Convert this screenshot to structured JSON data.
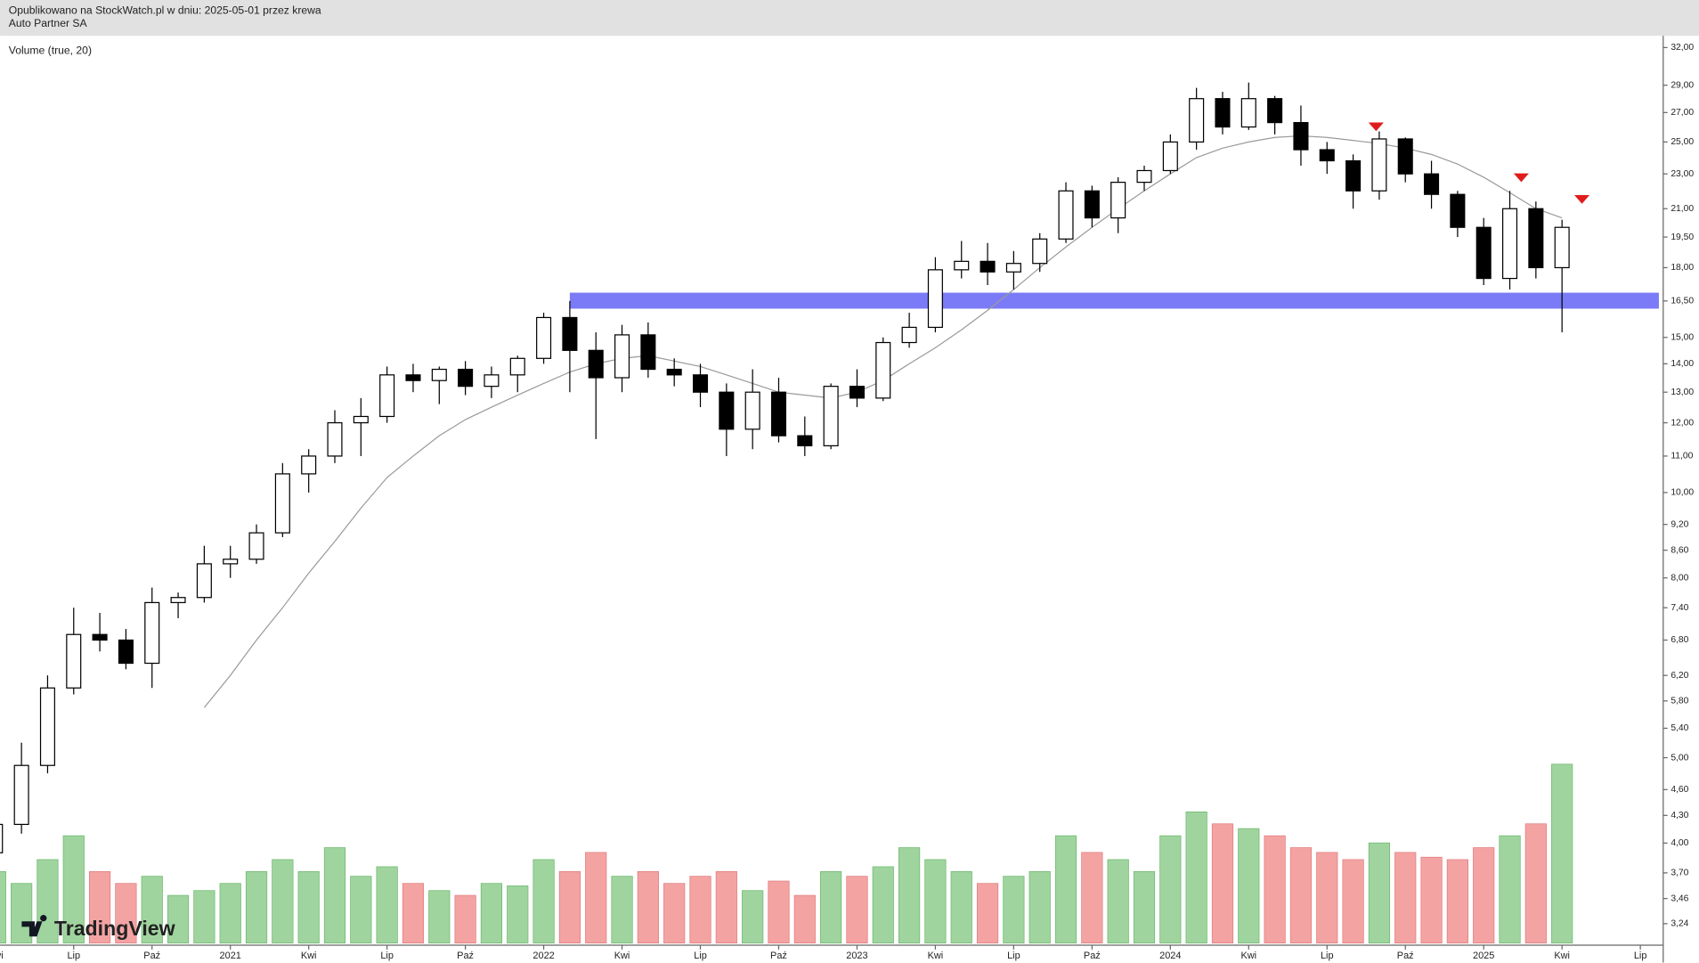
{
  "header": "Opublikowano na StockWatch.pl w dniu: 2025-05-01 przez krewa",
  "logo": "TradingView",
  "chart_data": {
    "type": "candlestick",
    "title": "Auto Partner SA",
    "log_scale": true,
    "up_color": "#ffffff",
    "down_color": "#000000",
    "x": [
      "2020-04",
      "2020-05",
      "2020-06",
      "2020-07",
      "2020-08",
      "2020-09",
      "2020-10",
      "2020-11",
      "2020-12",
      "2021-01",
      "2021-02",
      "2021-03",
      "2021-04",
      "2021-05",
      "2021-06",
      "2021-07",
      "2021-08",
      "2021-09",
      "2021-10",
      "2021-11",
      "2021-12",
      "2022-01",
      "2022-02",
      "2022-03",
      "2022-04",
      "2022-05",
      "2022-06",
      "2022-07",
      "2022-08",
      "2022-09",
      "2022-10",
      "2022-11",
      "2022-12",
      "2023-01",
      "2023-02",
      "2023-03",
      "2023-04",
      "2023-05",
      "2023-06",
      "2023-07",
      "2023-08",
      "2023-09",
      "2023-10",
      "2023-11",
      "2023-12",
      "2024-01",
      "2024-02",
      "2024-03",
      "2024-04",
      "2024-05",
      "2024-06",
      "2024-07",
      "2024-08",
      "2024-09",
      "2024-10",
      "2024-11",
      "2024-12",
      "2025-01",
      "2025-02",
      "2025-03",
      "2025-04"
    ],
    "open": [
      3.9,
      4.2,
      4.9,
      6.0,
      6.9,
      6.8,
      6.4,
      7.5,
      7.6,
      8.3,
      8.4,
      9.0,
      10.5,
      11.0,
      12.0,
      12.2,
      13.6,
      13.4,
      13.8,
      13.2,
      13.6,
      14.2,
      15.8,
      14.5,
      13.5,
      15.1,
      13.8,
      13.6,
      13.0,
      11.8,
      13.0,
      11.6,
      11.3,
      13.2,
      12.8,
      14.8,
      15.4,
      17.9,
      18.3,
      17.8,
      18.2,
      19.4,
      22.0,
      20.5,
      22.5,
      23.2,
      25.0,
      28.0,
      26.0,
      28.0,
      26.3,
      24.5,
      23.8,
      22.0,
      25.2,
      23.0,
      21.8,
      20.0,
      17.5,
      21.0,
      18.0
    ],
    "high": [
      4.3,
      5.2,
      6.2,
      7.4,
      7.3,
      7.0,
      7.8,
      7.7,
      8.7,
      8.7,
      9.2,
      10.8,
      11.2,
      12.4,
      12.8,
      13.9,
      14.0,
      13.9,
      14.1,
      13.9,
      14.3,
      16.0,
      16.5,
      15.2,
      15.5,
      15.6,
      14.2,
      14.0,
      13.3,
      13.8,
      13.5,
      12.2,
      13.3,
      13.8,
      15.0,
      16.0,
      18.5,
      19.3,
      19.2,
      18.8,
      19.7,
      22.5,
      22.3,
      22.8,
      23.5,
      25.5,
      28.8,
      28.5,
      29.2,
      28.2,
      27.5,
      25.0,
      24.2,
      25.7,
      25.3,
      23.8,
      22.0,
      20.5,
      22.0,
      21.4,
      20.4
    ],
    "low": [
      3.8,
      4.1,
      4.8,
      5.9,
      6.6,
      6.3,
      6.0,
      7.2,
      7.5,
      8.0,
      8.3,
      8.9,
      10.0,
      10.8,
      11.0,
      12.0,
      13.0,
      12.6,
      12.9,
      12.8,
      13.0,
      14.0,
      13.0,
      11.5,
      13.0,
      13.5,
      13.2,
      12.5,
      11.0,
      11.2,
      11.4,
      11.0,
      11.2,
      12.5,
      12.7,
      14.6,
      15.2,
      17.5,
      17.2,
      17.0,
      17.8,
      19.2,
      20.0,
      19.7,
      22.0,
      23.0,
      24.5,
      25.5,
      25.8,
      25.5,
      23.5,
      23.0,
      21.0,
      21.5,
      22.5,
      21.0,
      19.5,
      17.2,
      17.0,
      17.5,
      15.2
    ],
    "close": [
      4.2,
      4.9,
      6.0,
      6.9,
      6.8,
      6.4,
      7.5,
      7.6,
      8.3,
      8.4,
      9.0,
      10.5,
      11.0,
      12.0,
      12.2,
      13.6,
      13.4,
      13.8,
      13.2,
      13.6,
      14.2,
      15.8,
      14.5,
      13.5,
      15.1,
      13.8,
      13.6,
      13.0,
      11.8,
      13.0,
      11.6,
      11.3,
      13.2,
      12.8,
      14.8,
      15.4,
      17.9,
      18.3,
      17.8,
      18.2,
      19.4,
      22.0,
      20.5,
      22.5,
      23.2,
      25.0,
      28.0,
      26.0,
      28.0,
      26.3,
      24.5,
      23.8,
      22.0,
      25.2,
      23.0,
      21.8,
      20.0,
      17.5,
      21.0,
      18.0,
      20.0
    ],
    "ma": {
      "color": "#9a9a9a",
      "values": [
        null,
        null,
        null,
        null,
        null,
        null,
        null,
        null,
        5.7,
        6.2,
        6.8,
        7.4,
        8.1,
        8.8,
        9.6,
        10.4,
        11.0,
        11.6,
        12.1,
        12.5,
        12.9,
        13.3,
        13.7,
        14.0,
        14.2,
        14.3,
        14.1,
        13.9,
        13.6,
        13.3,
        13.0,
        12.9,
        12.8,
        13.0,
        13.4,
        14.0,
        14.6,
        15.3,
        16.1,
        17.0,
        18.0,
        19.0,
        20.0,
        21.0,
        22.0,
        23.0,
        24.0,
        24.6,
        25.0,
        25.3,
        25.4,
        25.3,
        25.1,
        24.9,
        24.6,
        24.2,
        23.6,
        22.8,
        21.9,
        21.0,
        20.5
      ]
    },
    "volume": {
      "label": "Volume (true, 20)",
      "up_color": "#9fd49f",
      "down_color": "#f4a3a3",
      "ylim": [
        0,
        100
      ],
      "values": [
        30,
        25,
        35,
        45,
        30,
        25,
        28,
        20,
        22,
        25,
        30,
        35,
        30,
        40,
        28,
        32,
        25,
        22,
        20,
        25,
        24,
        35,
        30,
        38,
        28,
        30,
        25,
        28,
        30,
        22,
        26,
        20,
        30,
        28,
        32,
        40,
        35,
        30,
        25,
        28,
        30,
        45,
        38,
        35,
        30,
        45,
        55,
        50,
        48,
        45,
        40,
        38,
        35,
        42,
        38,
        36,
        35,
        40,
        45,
        50,
        75
      ]
    },
    "zone": {
      "from": "2022-02",
      "low": 16.17,
      "high": 16.86,
      "color": "#7b7bf7"
    },
    "ylim": [
      3.08,
      33.0
    ],
    "yticks": [
      {
        "value": 32,
        "label": "32,00"
      },
      {
        "value": 29,
        "label": "29,00"
      },
      {
        "value": 27,
        "label": "27,00"
      },
      {
        "value": 25,
        "label": "25,00"
      },
      {
        "value": 23,
        "label": "23,00"
      },
      {
        "value": 21,
        "label": "21,00"
      },
      {
        "value": 19.5,
        "label": "19,50"
      },
      {
        "value": 18,
        "label": "18,00"
      },
      {
        "value": 16.5,
        "label": "16,50"
      },
      {
        "value": 15,
        "label": "15,00"
      },
      {
        "value": 14,
        "label": "14,00"
      },
      {
        "value": 13,
        "label": "13,00"
      },
      {
        "value": 12,
        "label": "12,00"
      },
      {
        "value": 11,
        "label": "11,00"
      },
      {
        "value": 10,
        "label": "10,00"
      },
      {
        "value": 9.2,
        "label": "9,20"
      },
      {
        "value": 8.6,
        "label": "8,60"
      },
      {
        "value": 8,
        "label": "8,00"
      },
      {
        "value": 7.4,
        "label": "7,40"
      },
      {
        "value": 6.8,
        "label": "6,80"
      },
      {
        "value": 6.2,
        "label": "6,20"
      },
      {
        "value": 5.8,
        "label": "5,80"
      },
      {
        "value": 5.4,
        "label": "5,40"
      },
      {
        "value": 5,
        "label": "5,00"
      },
      {
        "value": 4.6,
        "label": "4,60"
      },
      {
        "value": 4.3,
        "label": "4,30"
      },
      {
        "value": 4,
        "label": "4,00"
      },
      {
        "value": 3.7,
        "label": "3,70"
      },
      {
        "value": 3.46,
        "label": "3,46"
      },
      {
        "value": 3.24,
        "label": "3,24"
      }
    ],
    "xlim": [
      "2020-04",
      "2025-08"
    ],
    "xticks": [
      {
        "value": "2020-04",
        "label": "Kwi"
      },
      {
        "value": "2020-07",
        "label": "Lip"
      },
      {
        "value": "2020-10",
        "label": "Paź"
      },
      {
        "value": "2021-01",
        "label": "2021"
      },
      {
        "value": "2021-04",
        "label": "Kwi"
      },
      {
        "value": "2021-07",
        "label": "Lip"
      },
      {
        "value": "2021-10",
        "label": "Paź"
      },
      {
        "value": "2022-01",
        "label": "2022"
      },
      {
        "value": "2022-04",
        "label": "Kwi"
      },
      {
        "value": "2022-07",
        "label": "Lip"
      },
      {
        "value": "2022-10",
        "label": "Paź"
      },
      {
        "value": "2023-01",
        "label": "2023"
      },
      {
        "value": "2023-04",
        "label": "Kwi"
      },
      {
        "value": "2023-07",
        "label": "Lip"
      },
      {
        "value": "2023-10",
        "label": "Paź"
      },
      {
        "value": "2024-01",
        "label": "2024"
      },
      {
        "value": "2024-04",
        "label": "Kwi"
      },
      {
        "value": "2024-07",
        "label": "Lip"
      },
      {
        "value": "2024-10",
        "label": "Paź"
      },
      {
        "value": "2025-01",
        "label": "2025"
      },
      {
        "value": "2025-04",
        "label": "Kwi"
      },
      {
        "value": "2025-07",
        "label": "Lip"
      }
    ]
  }
}
